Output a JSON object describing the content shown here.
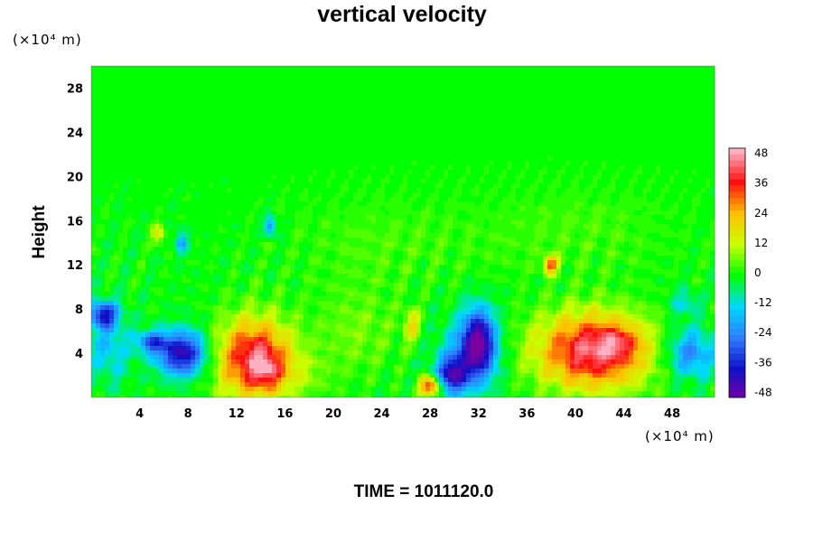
{
  "chart_data": {
    "type": "heatmap",
    "title": "vertical velocity",
    "xlabel": "",
    "ylabel": "Height",
    "x_unit_label": "(×10⁴ m)",
    "y_unit_label": "(×10⁴ m)",
    "xlim": [
      0,
      51.5
    ],
    "ylim": [
      0,
      30
    ],
    "x_ticks": [
      4,
      8,
      12,
      16,
      20,
      24,
      28,
      32,
      36,
      40,
      44,
      48
    ],
    "y_ticks": [
      4,
      8,
      12,
      16,
      20,
      24,
      28
    ],
    "colorbar": {
      "range": [
        -50,
        50
      ],
      "ticks": [
        48,
        36,
        24,
        12,
        0,
        -12,
        -24,
        -36,
        -48
      ],
      "colors": [
        "#7a00a0",
        "#1010c8",
        "#2f7bff",
        "#00d8ff",
        "#00ff00",
        "#c8ff00",
        "#ffc000",
        "#ff1010",
        "#ffb0c0"
      ]
    },
    "features": [
      {
        "x": 13.5,
        "y": 3.5,
        "rx": 3.0,
        "ry": 3.6,
        "w": 44
      },
      {
        "x": 14.5,
        "y": 2.5,
        "rx": 1.0,
        "ry": 1.3,
        "w": 14
      },
      {
        "x": 41.5,
        "y": 4.2,
        "rx": 4.6,
        "ry": 3.4,
        "w": 45
      },
      {
        "x": 43.5,
        "y": 5.0,
        "rx": 1.6,
        "ry": 1.3,
        "w": 12
      },
      {
        "x": 26.5,
        "y": 6.5,
        "rx": 0.7,
        "ry": 1.5,
        "w": 18
      },
      {
        "x": 28.0,
        "y": 1.0,
        "rx": 0.9,
        "ry": 0.9,
        "w": 38
      },
      {
        "x": 38.0,
        "y": 12.0,
        "rx": 0.6,
        "ry": 0.8,
        "w": 32
      },
      {
        "x": 5.5,
        "y": 14.8,
        "rx": 0.5,
        "ry": 0.9,
        "w": 18
      },
      {
        "x": 7.5,
        "y": 4.0,
        "rx": 2.0,
        "ry": 2.0,
        "w": -42
      },
      {
        "x": 5.0,
        "y": 5.0,
        "rx": 1.2,
        "ry": 1.0,
        "w": -26
      },
      {
        "x": 1.0,
        "y": 7.5,
        "rx": 1.2,
        "ry": 1.2,
        "w": -35
      },
      {
        "x": 1.5,
        "y": 4.5,
        "rx": 1.8,
        "ry": 3.0,
        "w": -14
      },
      {
        "x": 32.0,
        "y": 5.0,
        "rx": 1.4,
        "ry": 3.0,
        "w": -44
      },
      {
        "x": 29.8,
        "y": 2.0,
        "rx": 1.2,
        "ry": 1.6,
        "w": -36
      },
      {
        "x": 31.0,
        "y": 3.5,
        "rx": 2.4,
        "ry": 3.2,
        "w": -16
      },
      {
        "x": 49.5,
        "y": 4.0,
        "rx": 2.0,
        "ry": 2.2,
        "w": -24
      },
      {
        "x": 49.0,
        "y": 8.5,
        "rx": 1.2,
        "ry": 1.2,
        "w": -12
      },
      {
        "x": 7.5,
        "y": 14.0,
        "rx": 0.5,
        "ry": 1.0,
        "w": -20
      },
      {
        "x": 14.8,
        "y": 15.5,
        "rx": 0.5,
        "ry": 0.9,
        "w": -22
      },
      {
        "x": 22.0,
        "y": 6.0,
        "rx": 3.5,
        "ry": 4.0,
        "w": 7
      },
      {
        "x": 17.0,
        "y": 2.0,
        "rx": 3.0,
        "ry": 2.0,
        "w": 6
      },
      {
        "x": 24.0,
        "y": 14.0,
        "rx": 8.0,
        "ry": 4.0,
        "w": 4
      },
      {
        "x": 40.0,
        "y": 15.0,
        "rx": 8.0,
        "ry": 4.0,
        "w": 4
      }
    ]
  },
  "caption": {
    "time_text": "TIME = 1011120.0"
  },
  "colors": {
    "background": "#ffffff",
    "field_baseline": "#00ff00"
  }
}
